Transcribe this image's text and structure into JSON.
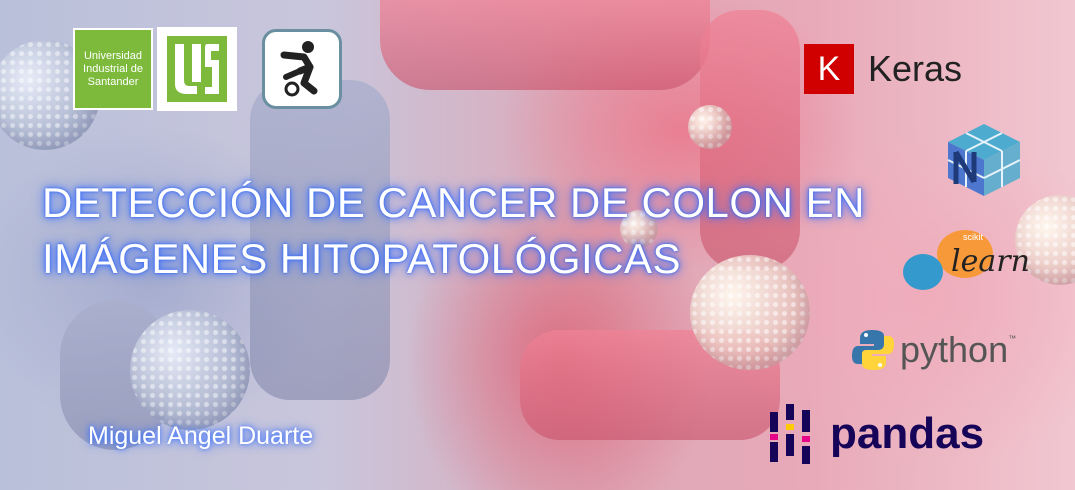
{
  "slide": {
    "title_line1": "DETECCIÓN DE CANCER DE COLON EN",
    "title_line2": "IMÁGENES HITOPATOLÓGICAS",
    "author": "Miguel Angel Duarte"
  },
  "logos": {
    "uis_text": {
      "line1": "Universidad",
      "line2": "Industrial de",
      "line3": "Santander",
      "color": "#7dba3c"
    },
    "uis_mark": {
      "icon": "uis-monogram-icon",
      "color": "#7dba3c"
    },
    "lab": {
      "icon": "human-figure-icon",
      "border_color": "#6a8fa0"
    },
    "keras": {
      "mark": "K",
      "word": "Keras",
      "color": "#d00000"
    },
    "numpy": {
      "icon": "numpy-cube-icon",
      "color": "#4dabcf"
    },
    "sklearn": {
      "small": "scikit",
      "word": "learn",
      "colors": [
        "#f89939",
        "#3499cd"
      ]
    },
    "python": {
      "word": "python",
      "tm": "™",
      "colors": [
        "#3776ab",
        "#ffd43b"
      ]
    },
    "pandas": {
      "word": "pandas",
      "color": "#150458",
      "accent": "#e70488"
    }
  }
}
